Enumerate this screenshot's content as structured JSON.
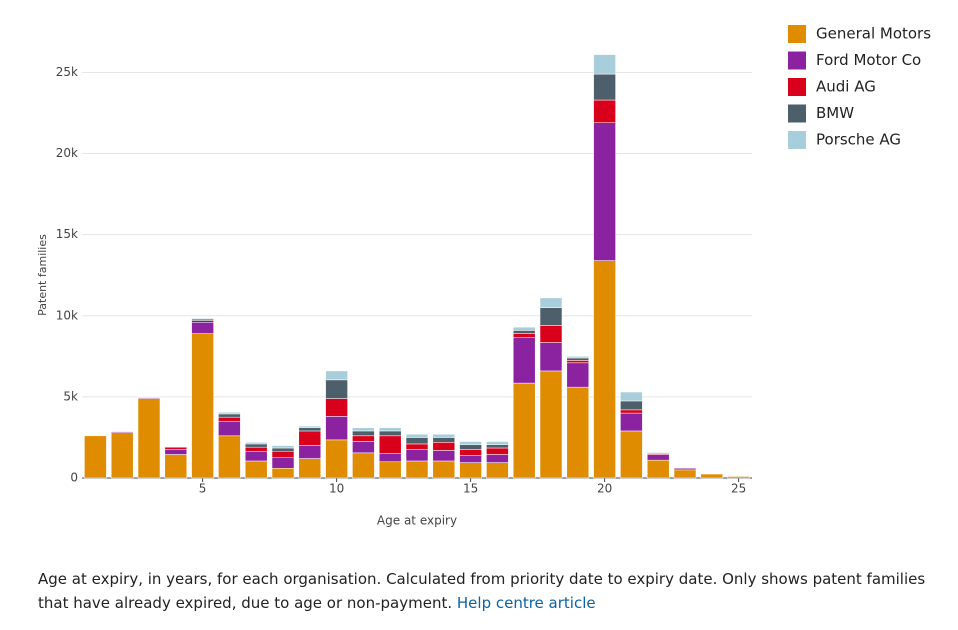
{
  "chart_data": {
    "type": "stacked_bar",
    "x": [
      1,
      2,
      3,
      4,
      5,
      6,
      7,
      8,
      9,
      10,
      11,
      12,
      13,
      14,
      15,
      16,
      17,
      18,
      19,
      20,
      21,
      22,
      23,
      24,
      25
    ],
    "series": [
      {
        "name": "General Motors",
        "color": "#e08c00",
        "values": [
          2600,
          2800,
          4900,
          1450,
          8900,
          2600,
          1050,
          600,
          1200,
          2350,
          1550,
          1000,
          1050,
          1050,
          950,
          950,
          5850,
          6600,
          5600,
          13400,
          2900,
          1100,
          500,
          250,
          100
        ]
      },
      {
        "name": "Ford Motor Co",
        "color": "#8b23a0",
        "values": [
          0,
          60,
          60,
          300,
          700,
          900,
          600,
          650,
          800,
          1450,
          700,
          500,
          700,
          650,
          450,
          500,
          2800,
          1750,
          1500,
          8500,
          1100,
          350,
          100,
          30,
          20
        ]
      },
      {
        "name": "Audi AG",
        "color": "#d9001b",
        "values": [
          0,
          20,
          20,
          150,
          100,
          250,
          250,
          400,
          900,
          1100,
          350,
          1100,
          350,
          500,
          350,
          400,
          250,
          1050,
          150,
          1400,
          200,
          50,
          20,
          10,
          0
        ]
      },
      {
        "name": "BMW",
        "color": "#4d5f6b",
        "values": [
          0,
          10,
          10,
          30,
          100,
          200,
          200,
          200,
          200,
          1150,
          300,
          300,
          400,
          300,
          300,
          200,
          200,
          1100,
          150,
          1600,
          550,
          50,
          20,
          10,
          0
        ]
      },
      {
        "name": "Porsche AG",
        "color": "#a9cedb",
        "values": [
          0,
          10,
          10,
          20,
          50,
          100,
          100,
          150,
          100,
          550,
          200,
          200,
          200,
          200,
          200,
          200,
          200,
          600,
          100,
          1200,
          550,
          50,
          10,
          0,
          0
        ]
      }
    ],
    "xlim": [
      0.5,
      25.5
    ],
    "xticks": [
      5,
      10,
      15,
      20,
      25
    ],
    "ylim": [
      0,
      27000
    ],
    "yticks": [
      0,
      {
        "value": 5000,
        "label": "5k"
      },
      {
        "value": 10000,
        "label": "10k"
      },
      {
        "value": 15000,
        "label": "15k"
      },
      {
        "value": 20000,
        "label": "20k"
      },
      {
        "value": 25000,
        "label": "25k"
      }
    ],
    "xlabel": "Age at expiry",
    "ylabel": "Patent families",
    "grid": true,
    "legend": "top-right"
  },
  "caption": {
    "text": "Age at expiry, in years, for each organisation. Calculated from priority date to expiry date. Only shows patent families that have already expired, due to age or non-payment.",
    "link": "Help centre article"
  }
}
